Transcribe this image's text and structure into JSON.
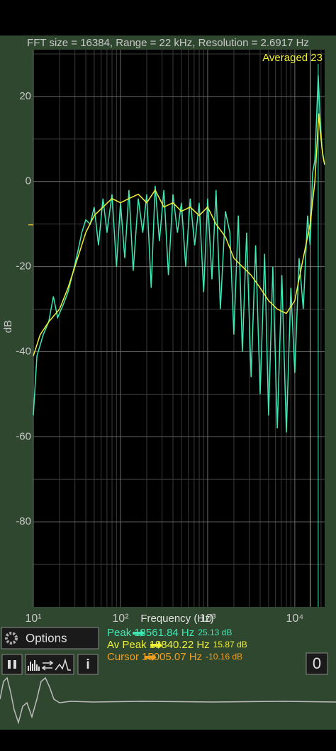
{
  "chart_data": {
    "type": "line",
    "x_label": "Frequency (Hz)",
    "y_label": "dB",
    "annotation": "Averaged 23",
    "xscale": "log",
    "grid": true,
    "xlim": [
      10,
      22000
    ],
    "ylim": [
      -100,
      31
    ],
    "xticks": [
      {
        "value": 10,
        "label": "10¹"
      },
      {
        "value": 100,
        "label": "10²"
      },
      {
        "value": 1000,
        "label": "10³"
      },
      {
        "value": 10000,
        "label": "10⁴"
      }
    ],
    "minor_xticks": [
      20,
      30,
      40,
      50,
      60,
      70,
      80,
      90,
      200,
      300,
      400,
      500,
      600,
      700,
      800,
      900,
      2000,
      3000,
      4000,
      5000,
      6000,
      7000,
      8000,
      9000,
      20000
    ],
    "yticks": [
      20,
      0,
      -20,
      -40,
      -60,
      -80
    ],
    "minor_yticks": [
      30,
      10,
      -10,
      -30,
      -50,
      -70,
      -90
    ],
    "markers": {
      "cursor_x": 15005.07,
      "cursor_y": -10.16,
      "peak_x": 18561.84,
      "color": "#d9b437",
      "peak_color": "#3ee8b5"
    },
    "series": [
      {
        "color": "#3ee8b5",
        "x": [
          10,
          11,
          13,
          15,
          17,
          19,
          22,
          25,
          28,
          32,
          36,
          40,
          45,
          50,
          56,
          63,
          70,
          80,
          90,
          100,
          112,
          125,
          140,
          160,
          180,
          200,
          225,
          250,
          280,
          315,
          355,
          400,
          450,
          500,
          560,
          630,
          710,
          800,
          900,
          1000,
          1120,
          1250,
          1400,
          1600,
          1800,
          2000,
          2250,
          2500,
          2800,
          3150,
          3550,
          4000,
          4500,
          5000,
          5600,
          6300,
          7100,
          8000,
          9000,
          10000,
          11200,
          12500,
          14000,
          15000,
          16000,
          17000,
          18000,
          18561,
          19500,
          20500,
          21500,
          22000
        ],
        "values": [
          -55,
          -41,
          -36,
          -33,
          -27,
          -32,
          -29,
          -26,
          -22,
          -17,
          -12,
          -9,
          -10,
          -6,
          -15,
          -4,
          -12,
          -3,
          -20,
          -5,
          -18,
          -2,
          -21,
          -4,
          -12,
          -3,
          -25,
          -1,
          -14,
          -2,
          -22,
          -3,
          -12,
          -5,
          -20,
          -4,
          -15,
          -5,
          -26,
          -4,
          -23,
          -2,
          -30,
          -7,
          -12,
          -36,
          -8,
          -40,
          -12,
          -46,
          -15,
          -50,
          -17,
          -55,
          -20,
          -58,
          -22,
          -59,
          -25,
          -45,
          -18,
          -30,
          -8,
          -15,
          2,
          5,
          18,
          25,
          15,
          8,
          5,
          4
        ]
      },
      {
        "color": "#f0f036",
        "x": [
          10,
          12,
          15,
          20,
          25,
          30,
          40,
          50,
          63,
          80,
          100,
          125,
          160,
          200,
          250,
          315,
          400,
          500,
          630,
          800,
          1000,
          1250,
          1600,
          2000,
          2500,
          3150,
          4000,
          5000,
          6300,
          8000,
          10000,
          12500,
          15000,
          17000,
          18840,
          19500,
          21000,
          22000
        ],
        "values": [
          -41,
          -36,
          -33,
          -30,
          -25,
          -20,
          -12,
          -8,
          -6,
          -4,
          -5,
          -4,
          -3,
          -5,
          -2,
          -6,
          -5,
          -7,
          -6,
          -8,
          -6,
          -10,
          -13,
          -18,
          -20,
          -22,
          -25,
          -28,
          -30,
          -31,
          -28,
          -18,
          -10,
          0,
          16,
          12,
          6,
          4
        ]
      }
    ]
  },
  "ui": {
    "header": "FFT size = 16384, Range = 22 kHz, Resolution = 2.6917 Hz",
    "options": "Options",
    "info": "i",
    "zero": "0",
    "readouts": [
      {
        "label": "Peak",
        "freq": "18561.84 Hz",
        "db": "25.13 dB",
        "color": "#3ee8b5"
      },
      {
        "label": "Av Peak",
        "freq": "18840.22 Hz",
        "db": "15.87 dB",
        "color": "#f0f036"
      },
      {
        "label": "Cursor",
        "freq": "15005.07 Hz",
        "db": "-10.16 dB",
        "color": "#f0a020"
      }
    ]
  }
}
